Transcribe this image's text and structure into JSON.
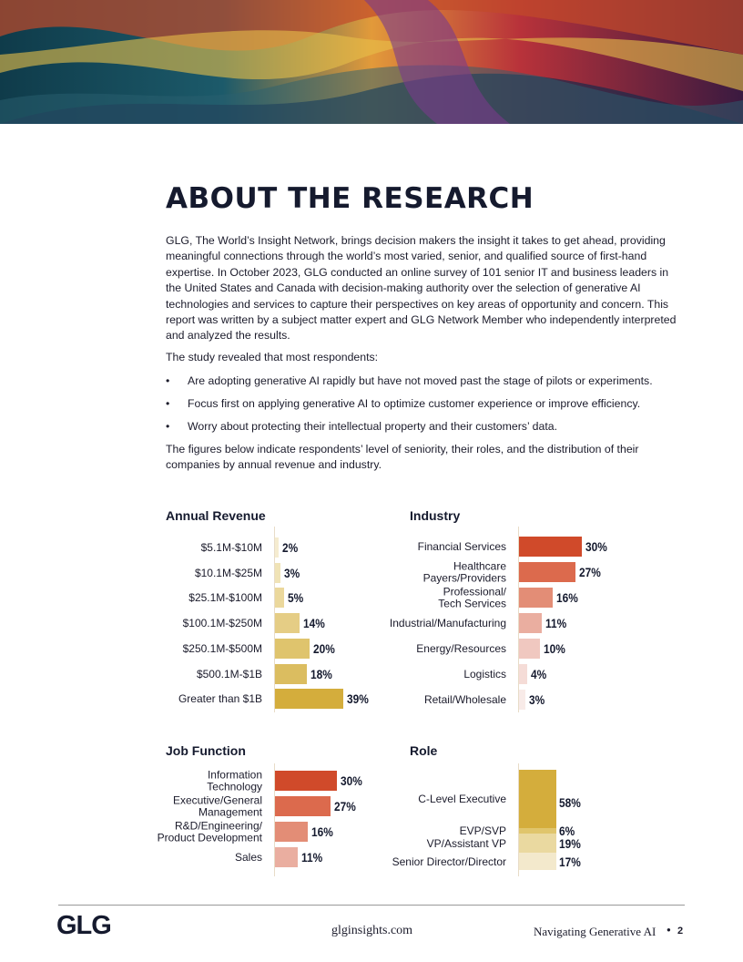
{
  "header": {
    "title": "ABOUT THE RESEARCH"
  },
  "body": {
    "intro": "GLG, The World’s Insight Network, brings decision makers the insight it takes to get ahead, providing meaningful connections through the world’s most varied, senior, and qualified source of first-hand expertise. In October 2023, GLG conducted an online survey of 101 senior IT and business leaders in the United States and Canada with decision-making authority over the selection of generative AI technologies and services to capture their perspectives on key areas of opportunity and concern. This report was written by a subject matter expert and GLG Network Member who independently interpreted and analyzed the results.",
    "lead": "The study revealed that most respondents:",
    "bullets": [
      "Are adopting generative AI rapidly but have not moved past the stage of pilots or experiments.",
      "Focus first on applying generative AI to optimize customer experience or improve efficiency.",
      "Worry about protecting their intellectual property and their customers’ data."
    ],
    "closing": "The figures below indicate respondents’ level of seniority, their roles, and the distribution of their companies by annual revenue and industry."
  },
  "chart_data": [
    {
      "type": "hbar",
      "title": "Annual Revenue",
      "categories": [
        "$5.1M-$10M",
        "$10.1M-$25M",
        "$25.1M-$100M",
        "$100.1M-$250M",
        "$250.1M-$500M",
        "$500.1M-$1B",
        "Greater than $1B"
      ],
      "values": [
        2,
        3,
        5,
        14,
        20,
        18,
        39
      ],
      "value_labels": [
        "2%",
        "3%",
        "5%",
        "14%",
        "20%",
        "18%",
        "39%"
      ],
      "colors": [
        "#f5ecd0",
        "#f0e3b6",
        "#ebd89c",
        "#e5cd85",
        "#dfc46d",
        "#dbbd60",
        "#d4ad3c"
      ]
    },
    {
      "type": "hbar",
      "title": "Industry",
      "categories": [
        "Financial Services",
        "Healthcare\nPayers/Providers",
        "Professional/\nTech Services",
        "Industrial/Manufacturing",
        "Energy/Resources",
        "Logistics",
        "Retail/Wholesale"
      ],
      "values": [
        30,
        27,
        16,
        11,
        10,
        4,
        3
      ],
      "value_labels": [
        "30%",
        "27%",
        "16%",
        "11%",
        "10%",
        "4%",
        "3%"
      ],
      "colors": [
        "#d04a2a",
        "#dc6a4d",
        "#e38d76",
        "#eaaea0",
        "#f0c8c0",
        "#f5dcd7",
        "#f8ebe8"
      ]
    },
    {
      "type": "hbar",
      "title": "Job Function",
      "categories": [
        "Information\nTechnology",
        "Executive/General\nManagement",
        "R&D/Engineering/\nProduct Development",
        "Sales"
      ],
      "values": [
        30,
        27,
        16,
        11
      ],
      "value_labels": [
        "30%",
        "27%",
        "16%",
        "11%"
      ],
      "colors": [
        "#d04a2a",
        "#dc6a4d",
        "#e38d76",
        "#eaaea0"
      ]
    },
    {
      "type": "stacked_column",
      "title": "Role",
      "categories": [
        "C-Level Executive",
        "EVP/SVP",
        "VP/Assistant VP",
        "Senior Director/Director"
      ],
      "values": [
        58,
        6,
        19,
        17
      ],
      "value_labels": [
        "58%",
        "6%",
        "19%",
        "17%"
      ],
      "colors": [
        "#d4ad3c",
        "#e0c56c",
        "#ead9a0",
        "#f3e9cc"
      ]
    }
  ],
  "footer": {
    "logo": "GLG",
    "url": "glginsights.com",
    "publication": "Navigating Generative AI",
    "page": "2"
  }
}
